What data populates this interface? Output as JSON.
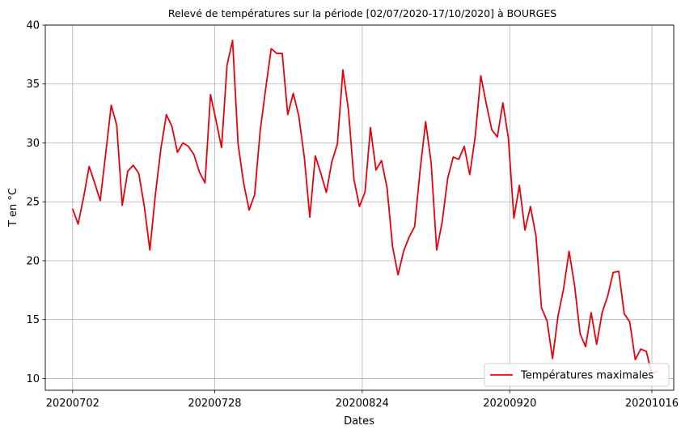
{
  "chart_data": {
    "type": "line",
    "title": "Relevé de températures sur la période [02/07/2020-17/10/2020] à BOURGES",
    "xlabel": "Dates",
    "ylabel": "T en °C",
    "x_start": "20200702",
    "x_end": "20201017",
    "xlim": [
      "20200627",
      "20201020"
    ],
    "ylim": [
      9,
      40
    ],
    "xticks": [
      "20200702",
      "20200728",
      "20200824",
      "20200920",
      "20201016"
    ],
    "yticks": [
      10,
      15,
      20,
      25,
      30,
      35,
      40
    ],
    "grid": true,
    "legend_position": "lower right",
    "colors": {
      "series": "#e8000b",
      "grid": "#b0b0b0",
      "axes": "#000000"
    },
    "series": [
      {
        "name": "Températures maximales",
        "values": [
          24.4,
          23.1,
          25.4,
          28.0,
          26.6,
          25.1,
          29.1,
          33.2,
          31.5,
          24.7,
          27.6,
          28.1,
          27.4,
          24.6,
          20.9,
          25.6,
          29.5,
          32.4,
          31.4,
          29.2,
          30.0,
          29.7,
          29.0,
          27.5,
          26.6,
          34.1,
          31.9,
          29.6,
          36.6,
          38.7,
          29.9,
          26.6,
          24.3,
          25.6,
          31.0,
          34.6,
          38.0,
          37.6,
          37.6,
          32.4,
          34.2,
          32.3,
          28.8,
          23.7,
          28.9,
          27.4,
          25.8,
          28.4,
          29.9,
          36.2,
          32.8,
          26.9,
          24.6,
          25.8,
          31.3,
          27.7,
          28.5,
          26.2,
          21.2,
          18.8,
          20.8,
          22.0,
          22.9,
          27.7,
          31.8,
          28.3,
          20.9,
          23.3,
          27.0,
          28.8,
          28.6,
          29.7,
          27.3,
          30.6,
          35.7,
          33.3,
          31.1,
          30.5,
          33.4,
          30.4,
          23.6,
          26.4,
          22.6,
          24.6,
          22.1,
          16.0,
          14.9,
          11.7,
          15.3,
          17.6,
          20.8,
          17.9,
          13.8,
          12.7,
          15.6,
          12.9,
          15.6,
          17.0,
          19.0,
          19.1,
          15.5,
          14.8,
          11.6,
          12.5,
          12.3,
          10.4,
          10.6
        ]
      }
    ]
  }
}
